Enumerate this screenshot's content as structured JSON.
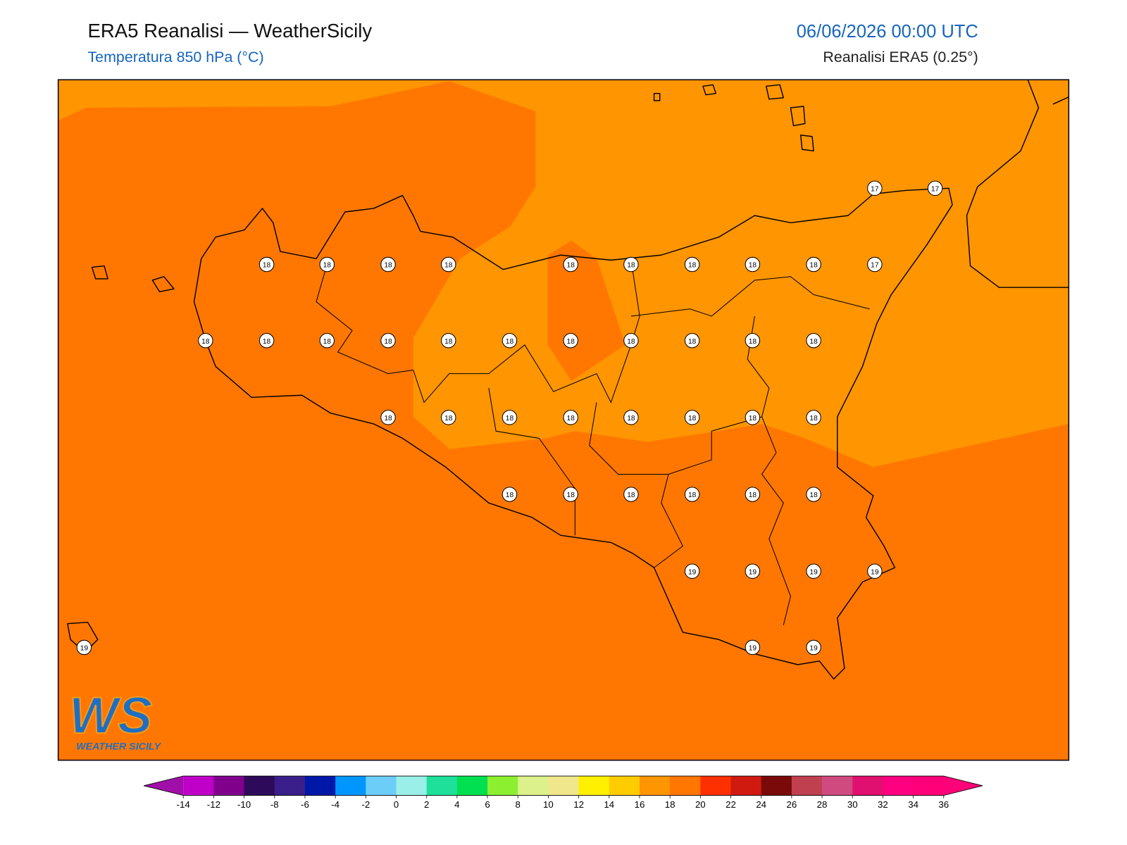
{
  "header": {
    "title": "ERA5 Reanalisi — WeatherSicily",
    "subtitle": "Temperatura 850 hPa (°C)",
    "date": "06/06/2026 00:00 UTC",
    "source": "Reanalisi ERA5 (0.25°)"
  },
  "stations": [
    17,
    17,
    18,
    18,
    18,
    18,
    18,
    18,
    18,
    18,
    18,
    17,
    18,
    18,
    18,
    18,
    18,
    18,
    18,
    18,
    18,
    18,
    18,
    18,
    18,
    18,
    18,
    18,
    18,
    18,
    18,
    18,
    18,
    18,
    18,
    18,
    18,
    19,
    19,
    19,
    19,
    19,
    19,
    19
  ],
  "colorbar": {
    "ticks": [
      -14,
      -12,
      -10,
      -8,
      -6,
      -4,
      -2,
      0,
      2,
      4,
      6,
      8,
      10,
      12,
      14,
      16,
      18,
      20,
      22,
      24,
      26,
      28,
      30,
      32,
      34,
      36
    ],
    "under": "#a010a8",
    "over": "#ff0078",
    "colors": [
      "#c000c8",
      "#80008c",
      "#2e0a5a",
      "#3a1f8a",
      "#0018a8",
      "#0096ff",
      "#6ccdf8",
      "#9af0e8",
      "#1ee09a",
      "#00e050",
      "#8cf030",
      "#dcf08c",
      "#f0e68c",
      "#fff000",
      "#ffcc00",
      "#ff9500",
      "#ff7700",
      "#ff3000",
      "#d01a10",
      "#7a0a0a",
      "#c04050",
      "#d04a80",
      "#e01070",
      "#ff0080",
      "#ff0078"
    ]
  },
  "logo": {
    "mark": "WS",
    "text": "WEATHER SICILY"
  }
}
